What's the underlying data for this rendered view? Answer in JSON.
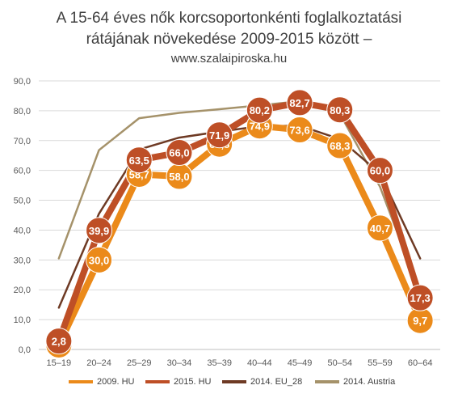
{
  "title_line1": "A 15-64 éves nők korcsoportonkénti foglalkoztatási",
  "title_line2": "rátájának növekedése 2009-2015 között –",
  "subtitle": "www.szalaipiroska.hu",
  "chart_data": {
    "type": "line",
    "title": "A 15-64 éves nők korcsoportonkénti foglalkoztatási rátájának növekedése 2009-2015 között – www.szalaipiroska.hu",
    "xlabel": "",
    "ylabel": "",
    "ylim": [
      0,
      90
    ],
    "y_ticks": [
      "0,0",
      "10,0",
      "20,0",
      "30,0",
      "40,0",
      "50,0",
      "60,0",
      "70,0",
      "80,0",
      "90,0"
    ],
    "grid": true,
    "legend_position": "bottom",
    "categories": [
      "15–19",
      "20–24",
      "25–29",
      "30–34",
      "35–39",
      "40–44",
      "45–49",
      "50–54",
      "55–59",
      "60–64"
    ],
    "series": [
      {
        "name": "2014. Austria",
        "color": "#A5926A",
        "width": 2.5,
        "values": [
          30.5,
          66.8,
          77.5,
          79.3,
          80.5,
          81.8,
          83.2,
          79.0,
          54.5,
          19.0
        ],
        "labels": false
      },
      {
        "name": "2014. EU_28",
        "color": "#6E3A24",
        "width": 2.5,
        "values": [
          14.0,
          45.5,
          67.0,
          71.0,
          73.0,
          74.8,
          75.0,
          70.5,
          59.0,
          30.5
        ],
        "labels": false
      },
      {
        "name": "2009. HU",
        "color": "#EB8A1A",
        "width": 8,
        "values": [
          1.5,
          30.0,
          58.7,
          58.0,
          68.8,
          74.9,
          73.6,
          68.3,
          40.7,
          9.7
        ],
        "labels": true,
        "value_labels": [
          "1,5",
          "30,0",
          "58,7",
          "58,0",
          "68,8",
          "74,9",
          "73,6",
          "68,3",
          "40,7",
          "9,7"
        ]
      },
      {
        "name": "2015. HU",
        "color": "#BE4F26",
        "width": 8,
        "values": [
          2.8,
          39.9,
          63.5,
          66.0,
          71.9,
          80.2,
          82.7,
          80.3,
          60.0,
          17.3
        ],
        "labels": true,
        "value_labels": [
          "2,8",
          "39,9",
          "63,5",
          "66,0",
          "71,9",
          "80,2",
          "82,7",
          "80,3",
          "60,0",
          "17,3"
        ]
      }
    ],
    "legend_order": [
      "2009. HU",
      "2015. HU",
      "2014. EU_28",
      "2014. Austria"
    ]
  }
}
